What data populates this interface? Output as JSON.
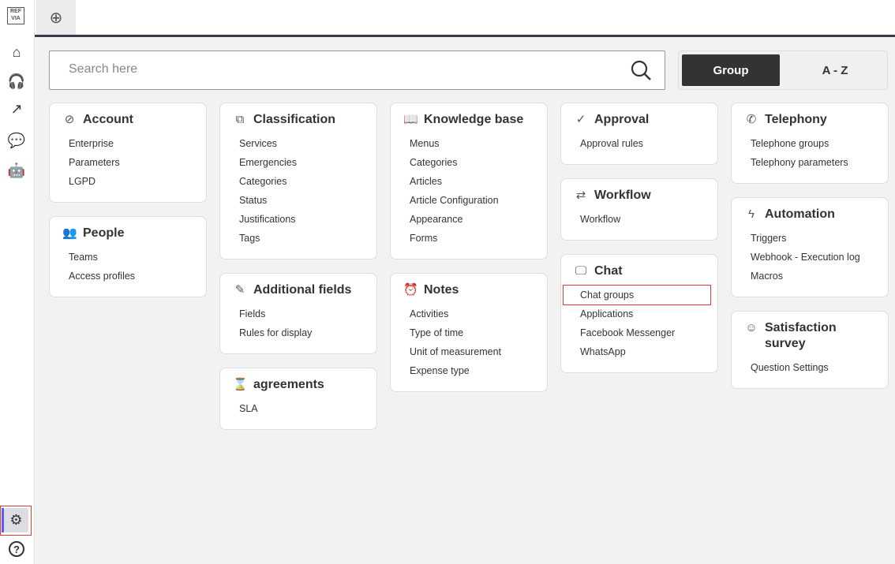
{
  "sidebar": {
    "logo": "REF VIA",
    "items": [
      {
        "name": "home-icon",
        "glyph": "⌂"
      },
      {
        "name": "headset-icon",
        "glyph": "🎧"
      },
      {
        "name": "analytics-icon",
        "glyph": "↗"
      },
      {
        "name": "chat-icon",
        "glyph": "💬"
      },
      {
        "name": "robot-icon",
        "glyph": "🤖"
      }
    ],
    "settings": {
      "name": "gear-icon",
      "glyph": "⚙"
    },
    "help": {
      "name": "help-icon",
      "glyph": "?"
    }
  },
  "tabs": {
    "new_tab_glyph": "⊕"
  },
  "search": {
    "placeholder": "Search here"
  },
  "view_toggle": {
    "group": "Group",
    "az": "A - Z",
    "active": "Group"
  },
  "columns": [
    [
      {
        "title": "Account",
        "icon": "compass-icon",
        "glyph": "⊘",
        "items": [
          "Enterprise",
          "Parameters",
          "LGPD"
        ]
      },
      {
        "title": "People",
        "icon": "people-icon",
        "glyph": "👥",
        "items": [
          "Teams",
          "Access profiles"
        ]
      }
    ],
    [
      {
        "title": "Classification",
        "icon": "hierarchy-icon",
        "glyph": "⧉",
        "items": [
          "Services",
          "Emergencies",
          "Categories",
          "Status",
          "Justifications",
          "Tags"
        ]
      },
      {
        "title": "Additional fields",
        "icon": "edit-form-icon",
        "glyph": "✎",
        "items": [
          "Fields",
          "Rules for display"
        ]
      },
      {
        "title": "agreements",
        "icon": "hourglass-icon",
        "glyph": "⌛",
        "items": [
          "SLA"
        ]
      }
    ],
    [
      {
        "title": "Knowledge base",
        "icon": "book-icon",
        "glyph": "📖",
        "items": [
          "Menus",
          "Categories",
          "Articles",
          "Article Configuration",
          "Appearance",
          "Forms"
        ]
      },
      {
        "title": "Notes",
        "icon": "alarm-clock-icon",
        "glyph": "⏰",
        "items": [
          "Activities",
          "Type of time",
          "Unit of measurement",
          "Expense type"
        ]
      }
    ],
    [
      {
        "title": "Approval",
        "icon": "check-circle-icon",
        "glyph": "✓",
        "items": [
          "Approval rules"
        ]
      },
      {
        "title": "Workflow",
        "icon": "workflow-icon",
        "glyph": "⇄",
        "items": [
          "Workflow"
        ]
      },
      {
        "title": "Chat",
        "icon": "chat-devices-icon",
        "glyph": "🖵",
        "items": [
          "Chat groups",
          "Applications",
          "Facebook Messenger",
          "WhatsApp"
        ],
        "highlighted": "Chat groups"
      }
    ],
    [
      {
        "title": "Telephony",
        "icon": "phone-icon",
        "glyph": "✆",
        "items": [
          "Telephone groups",
          "Telephony parameters"
        ]
      },
      {
        "title": "Automation",
        "icon": "lightning-icon",
        "glyph": "ϟ",
        "items": [
          "Triggers",
          "Webhook - Execution log",
          "Macros"
        ]
      },
      {
        "title": "Satisfaction survey",
        "icon": "smiley-icon",
        "glyph": "☺",
        "items": [
          "Question Settings"
        ]
      }
    ]
  ]
}
